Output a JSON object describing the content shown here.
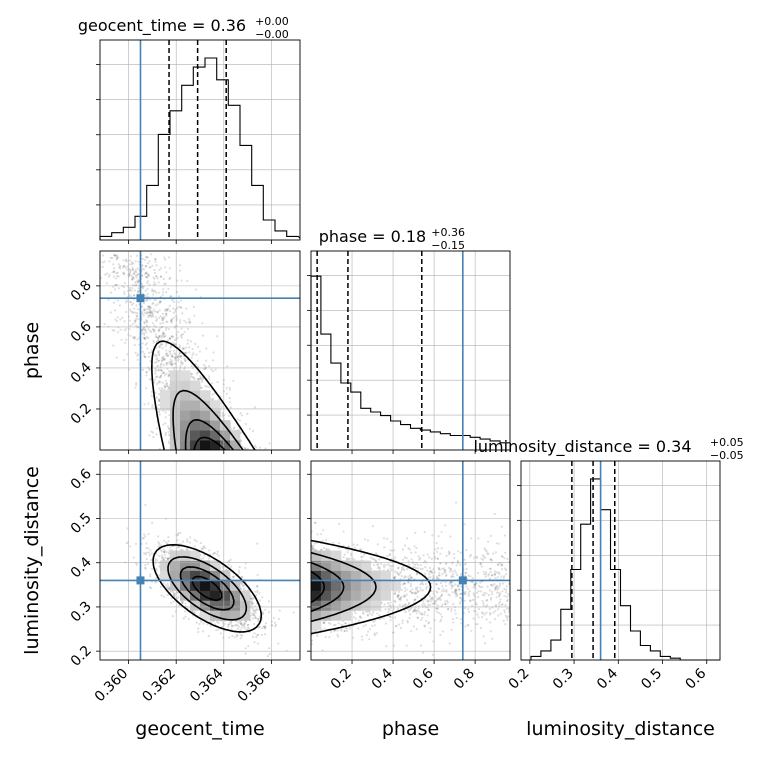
{
  "chart_data": {
    "type": "corner",
    "grid": true,
    "parameters": [
      {
        "name": "geocent_time",
        "title_main": "geocent_time = 0.36",
        "title_sup": "+0.00",
        "title_sub": "−0.00",
        "range": [
          0.3588,
          0.3672
        ],
        "ticks": [
          0.36,
          0.362,
          0.364,
          0.366
        ],
        "tick_labels": [
          "0.360",
          "0.362",
          "0.364",
          "0.366"
        ],
        "truth": 0.3605,
        "quantiles": [
          0.3617,
          0.3629,
          0.3641
        ],
        "hist_x": [
          0.3588,
          0.35929,
          0.35978,
          0.36027,
          0.36076,
          0.36125,
          0.36174,
          0.36223,
          0.36272,
          0.36321,
          0.3637,
          0.36419,
          0.36468,
          0.36517,
          0.36566,
          0.36615,
          0.36664,
          0.3672
        ],
        "hist_y": [
          0.02,
          0.04,
          0.07,
          0.13,
          0.3,
          0.58,
          0.71,
          0.85,
          0.95,
          1.0,
          0.88,
          0.74,
          0.52,
          0.3,
          0.11,
          0.05,
          0.02,
          0.01
        ]
      },
      {
        "name": "phase",
        "title_main": "phase = 0.18",
        "title_sup": "+0.36",
        "title_sub": "−0.15",
        "range": [
          0.0,
          0.97
        ],
        "ticks": [
          0.2,
          0.4,
          0.6,
          0.8
        ],
        "tick_labels": [
          "0.2",
          "0.4",
          "0.6",
          "0.8"
        ],
        "truth": 0.74,
        "quantiles": [
          0.03,
          0.18,
          0.54
        ],
        "hist_x": [
          0.0,
          0.0485,
          0.097,
          0.1455,
          0.194,
          0.2425,
          0.291,
          0.3395,
          0.388,
          0.4365,
          0.485,
          0.5335,
          0.582,
          0.6305,
          0.679,
          0.7275,
          0.776,
          0.8245,
          0.873,
          0.9215
        ],
        "hist_y": [
          0.96,
          0.64,
          0.48,
          0.37,
          0.32,
          0.23,
          0.21,
          0.19,
          0.16,
          0.14,
          0.12,
          0.11,
          0.1,
          0.09,
          0.08,
          0.08,
          0.07,
          0.06,
          0.05,
          0.04
        ]
      },
      {
        "name": "luminosity_distance",
        "title_main": "luminosity_distance = 0.34",
        "title_sup": "+0.05",
        "title_sub": "−0.05",
        "range": [
          0.18,
          0.63
        ],
        "ticks": [
          0.2,
          0.3,
          0.4,
          0.5,
          0.6
        ],
        "tick_labels": [
          "0.2",
          "0.3",
          "0.4",
          "0.5",
          "0.6"
        ],
        "truth": 0.36,
        "quantiles": [
          0.295,
          0.343,
          0.392
        ],
        "hist_x": [
          0.18,
          0.2025,
          0.225,
          0.2475,
          0.27,
          0.2925,
          0.315,
          0.3375,
          0.36,
          0.3825,
          0.405,
          0.4275,
          0.45,
          0.4725,
          0.495,
          0.5175,
          0.54,
          0.5625,
          0.585,
          0.6075
        ],
        "hist_y": [
          0.0,
          0.02,
          0.05,
          0.11,
          0.28,
          0.5,
          0.75,
          1.0,
          0.83,
          0.5,
          0.3,
          0.16,
          0.08,
          0.05,
          0.02,
          0.01,
          0.0,
          0.0,
          0.0,
          0.0
        ]
      }
    ],
    "pairs": [
      {
        "x": "geocent_time",
        "y": "phase"
      },
      {
        "x": "geocent_time",
        "y": "luminosity_distance"
      },
      {
        "x": "phase",
        "y": "luminosity_distance"
      }
    ],
    "colors": {
      "truth": "#4682b4",
      "contour": "#000000",
      "hist": "#000000",
      "grid": "#b0b0b0"
    }
  }
}
